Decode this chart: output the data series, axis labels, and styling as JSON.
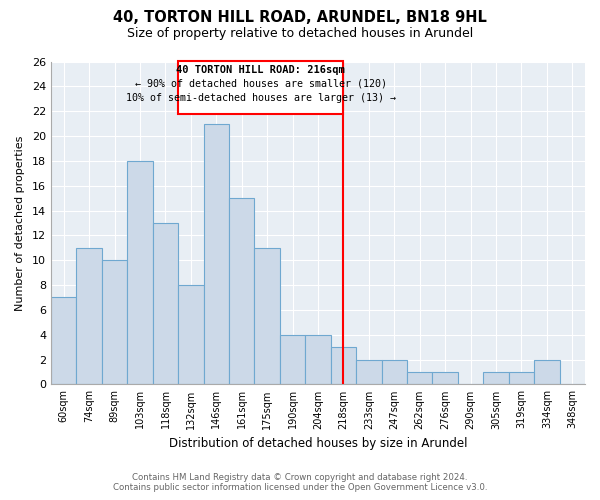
{
  "title": "40, TORTON HILL ROAD, ARUNDEL, BN18 9HL",
  "subtitle": "Size of property relative to detached houses in Arundel",
  "xlabel": "Distribution of detached houses by size in Arundel",
  "ylabel": "Number of detached properties",
  "bin_labels": [
    "60sqm",
    "74sqm",
    "89sqm",
    "103sqm",
    "118sqm",
    "132sqm",
    "146sqm",
    "161sqm",
    "175sqm",
    "190sqm",
    "204sqm",
    "218sqm",
    "233sqm",
    "247sqm",
    "262sqm",
    "276sqm",
    "290sqm",
    "305sqm",
    "319sqm",
    "334sqm",
    "348sqm"
  ],
  "bar_heights": [
    7,
    11,
    10,
    18,
    13,
    8,
    21,
    15,
    11,
    4,
    4,
    3,
    2,
    2,
    1,
    1,
    0,
    1,
    1,
    2,
    0
  ],
  "bar_color": "#ccd9e8",
  "bar_edge_color": "#6fa8d0",
  "ylim": [
    0,
    26
  ],
  "yticks": [
    0,
    2,
    4,
    6,
    8,
    10,
    12,
    14,
    16,
    18,
    20,
    22,
    24,
    26
  ],
  "annotation_title": "40 TORTON HILL ROAD: 216sqm",
  "annotation_line1": "← 90% of detached houses are smaller (120)",
  "annotation_line2": "10% of semi-detached houses are larger (13) →",
  "footer_line1": "Contains HM Land Registry data © Crown copyright and database right 2024.",
  "footer_line2": "Contains public sector information licensed under the Open Government Licence v3.0.",
  "bg_color": "#ffffff",
  "plot_bg_color": "#e8eef4",
  "grid_color": "#ffffff"
}
